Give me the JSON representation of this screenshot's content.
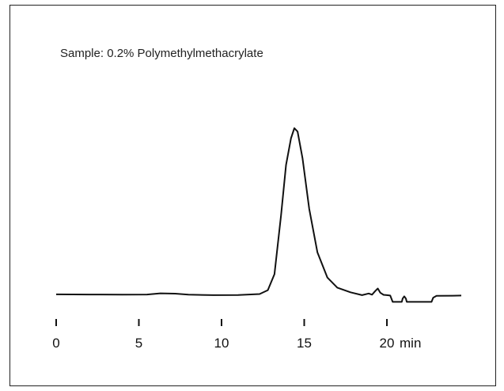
{
  "chart_data": {
    "type": "line",
    "title": "",
    "annotation": "Sample: 0.2% Polymethylmethacrylate",
    "xlabel": "",
    "ylabel": "",
    "x_unit": "min",
    "xlim": [
      0,
      24.5
    ],
    "ylim": [
      0,
      100
    ],
    "x_ticks": [
      0,
      5,
      10,
      15,
      20
    ],
    "tick_labels": [
      "0",
      "5",
      "10",
      "15",
      "20"
    ],
    "grid": false,
    "line_color": "#111111",
    "series": [
      {
        "values_note": "",
        "points": [
          [
            0,
            1.0
          ],
          [
            2,
            0.9
          ],
          [
            4,
            0.8
          ],
          [
            5.5,
            0.9
          ],
          [
            6.3,
            1.6
          ],
          [
            7.2,
            1.4
          ],
          [
            8.0,
            0.8
          ],
          [
            9.5,
            0.5
          ],
          [
            11.0,
            0.6
          ],
          [
            12.3,
            1.2
          ],
          [
            12.8,
            3.5
          ],
          [
            13.2,
            13
          ],
          [
            13.6,
            48
          ],
          [
            13.9,
            78
          ],
          [
            14.2,
            94
          ],
          [
            14.4,
            100
          ],
          [
            14.6,
            98
          ],
          [
            14.9,
            82
          ],
          [
            15.3,
            52
          ],
          [
            15.8,
            26
          ],
          [
            16.4,
            11
          ],
          [
            17.0,
            5
          ],
          [
            17.8,
            2.2
          ],
          [
            18.5,
            0.5
          ],
          [
            18.9,
            1.5
          ],
          [
            19.1,
            0.8
          ],
          [
            19.3,
            3.0
          ],
          [
            19.45,
            4.5
          ],
          [
            19.6,
            2.0
          ],
          [
            19.8,
            0.7
          ],
          [
            20.0,
            0.5
          ],
          [
            20.2,
            0.3
          ],
          [
            20.35,
            -3.5
          ],
          [
            20.9,
            -3.5
          ],
          [
            20.95,
            -1.5
          ],
          [
            21.05,
            -0.2
          ],
          [
            21.15,
            -1.5
          ],
          [
            21.2,
            -3.5
          ],
          [
            22.7,
            -3.5
          ],
          [
            22.8,
            -1.0
          ],
          [
            23.0,
            0.1
          ],
          [
            24.0,
            0.2
          ],
          [
            24.5,
            0.3
          ]
        ]
      }
    ]
  }
}
